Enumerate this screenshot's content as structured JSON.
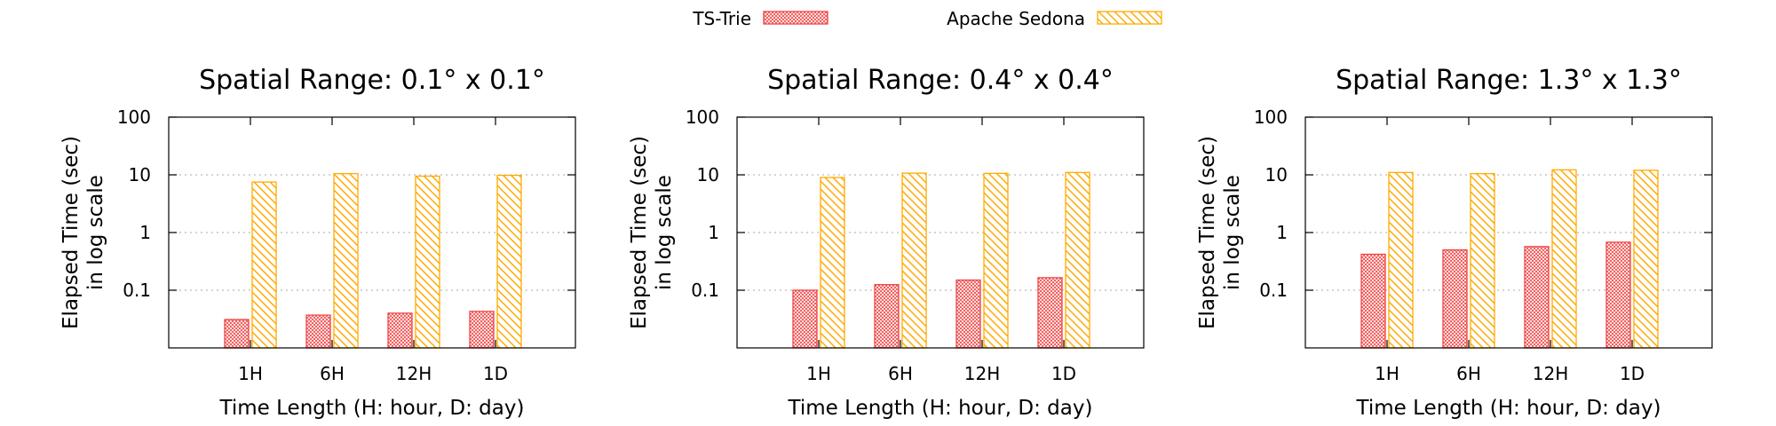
{
  "legend": [
    {
      "name": "TS-Trie",
      "color": "#ee4444",
      "pattern": "crosshatch"
    },
    {
      "name": "Apache Sedona",
      "color": "#ffaa00",
      "pattern": "diagonal-stripes"
    }
  ],
  "chart_data": [
    {
      "type": "bar",
      "title": "Spatial Range: 0.1° x 0.1°",
      "xlabel": "Time Length (H: hour, D: day)",
      "ylabel": [
        "Elapsed Time (sec)",
        "in log scale"
      ],
      "yscale": "log",
      "ylim": [
        0.01,
        100
      ],
      "yticks": [
        0.1,
        1,
        10,
        100
      ],
      "ytick_labels": [
        "0.1",
        "1",
        "10",
        "100"
      ],
      "grid": "horizontal dotted",
      "categories": [
        "1H",
        "6H",
        "12H",
        "1D"
      ],
      "series": [
        {
          "name": "TS-Trie",
          "values": [
            0.031,
            0.037,
            0.04,
            0.043
          ]
        },
        {
          "name": "Apache Sedona",
          "values": [
            7.5,
            10.5,
            9.5,
            9.8
          ]
        }
      ]
    },
    {
      "type": "bar",
      "title": "Spatial Range: 0.4° x 0.4°",
      "xlabel": "Time Length (H: hour, D: day)",
      "ylabel": [
        "Elapsed Time (sec)",
        "in log scale"
      ],
      "yscale": "log",
      "ylim": [
        0.01,
        100
      ],
      "yticks": [
        0.1,
        1,
        10,
        100
      ],
      "ytick_labels": [
        "0.1",
        "1",
        "10",
        "100"
      ],
      "grid": "horizontal dotted",
      "categories": [
        "1H",
        "6H",
        "12H",
        "1D"
      ],
      "series": [
        {
          "name": "TS-Trie",
          "values": [
            0.1,
            0.125,
            0.15,
            0.165
          ]
        },
        {
          "name": "Apache Sedona",
          "values": [
            9.0,
            10.7,
            10.6,
            11.0
          ]
        }
      ]
    },
    {
      "type": "bar",
      "title": "Spatial Range: 1.3° x 1.3°",
      "xlabel": "Time Length (H: hour, D: day)",
      "ylabel": [
        "Elapsed Time (sec)",
        "in log scale"
      ],
      "yscale": "log",
      "ylim": [
        0.01,
        100
      ],
      "yticks": [
        0.1,
        1,
        10,
        100
      ],
      "ytick_labels": [
        "0.1",
        "1",
        "10",
        "100"
      ],
      "grid": "horizontal dotted",
      "categories": [
        "1H",
        "6H",
        "12H",
        "1D"
      ],
      "series": [
        {
          "name": "TS-Trie",
          "values": [
            0.42,
            0.5,
            0.57,
            0.68
          ]
        },
        {
          "name": "Apache Sedona",
          "values": [
            11.0,
            10.5,
            12.2,
            12.0
          ]
        }
      ]
    }
  ]
}
